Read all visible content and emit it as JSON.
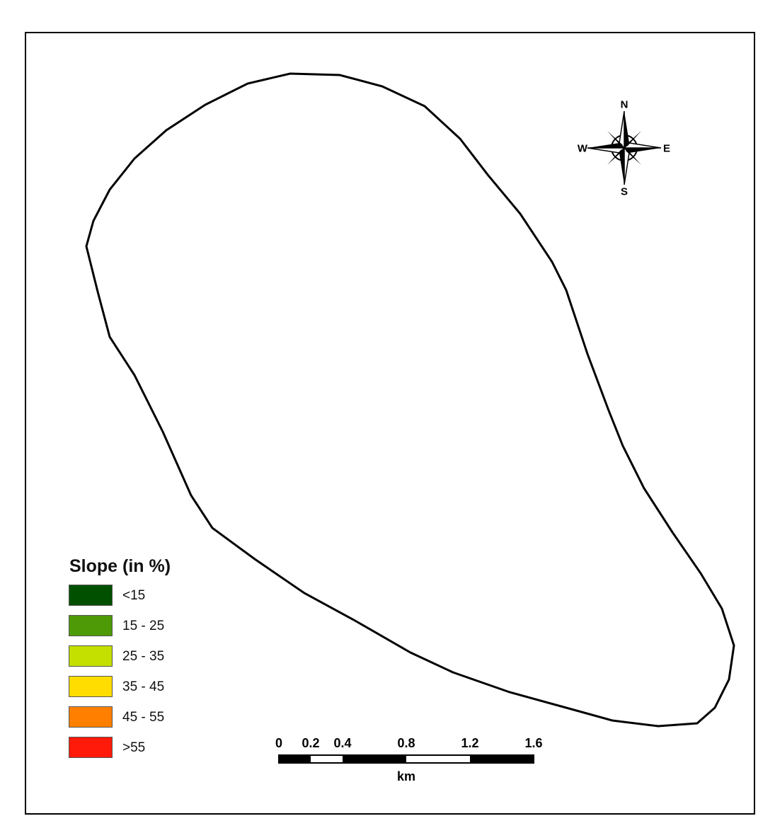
{
  "map": {
    "legend": {
      "title": "Slope (in %)",
      "classes": [
        {
          "label": "<15",
          "color": "#005000"
        },
        {
          "label": "15 - 25",
          "color": "#4e9a06"
        },
        {
          "label": "25 - 35",
          "color": "#c4e000"
        },
        {
          "label": "35 - 45",
          "color": "#ffdd00"
        },
        {
          "label": "45 - 55",
          "color": "#ff7f00"
        },
        {
          "label": ">55",
          "color": "#ff1a0a"
        }
      ]
    },
    "north_arrow": {
      "n": "N",
      "s": "S",
      "e": "E",
      "w": "W"
    },
    "scale_bar": {
      "ticks": [
        "0",
        "0.2",
        "0.4",
        "0.8",
        "1.2",
        "1.6"
      ],
      "tick_values": [
        0,
        0.2,
        0.4,
        0.8,
        1.2,
        1.6
      ],
      "unit": "km"
    }
  }
}
